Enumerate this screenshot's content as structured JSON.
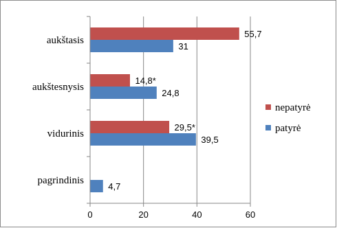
{
  "chart_data": {
    "type": "bar",
    "orientation": "horizontal",
    "categories": [
      "aukštasis",
      "aukštesnysis",
      "vidurinis",
      "pagrindinis"
    ],
    "series": [
      {
        "name": "nepatyrė",
        "color": "#C0504D",
        "values": [
          55.7,
          14.8,
          29.5,
          null
        ],
        "labels": [
          "55,7",
          "14,8*",
          "29,5*",
          ""
        ]
      },
      {
        "name": "patyrė",
        "color": "#4F81BD",
        "values": [
          31,
          24.8,
          39.5,
          4.7
        ],
        "labels": [
          "31",
          "24,8",
          "39,5",
          "4,7"
        ]
      }
    ],
    "xlim": [
      0,
      60
    ],
    "xticks": [
      "0",
      "20",
      "40",
      "60"
    ],
    "grid": true,
    "legend_position": "right",
    "title": "",
    "xlabel": "",
    "ylabel": ""
  }
}
